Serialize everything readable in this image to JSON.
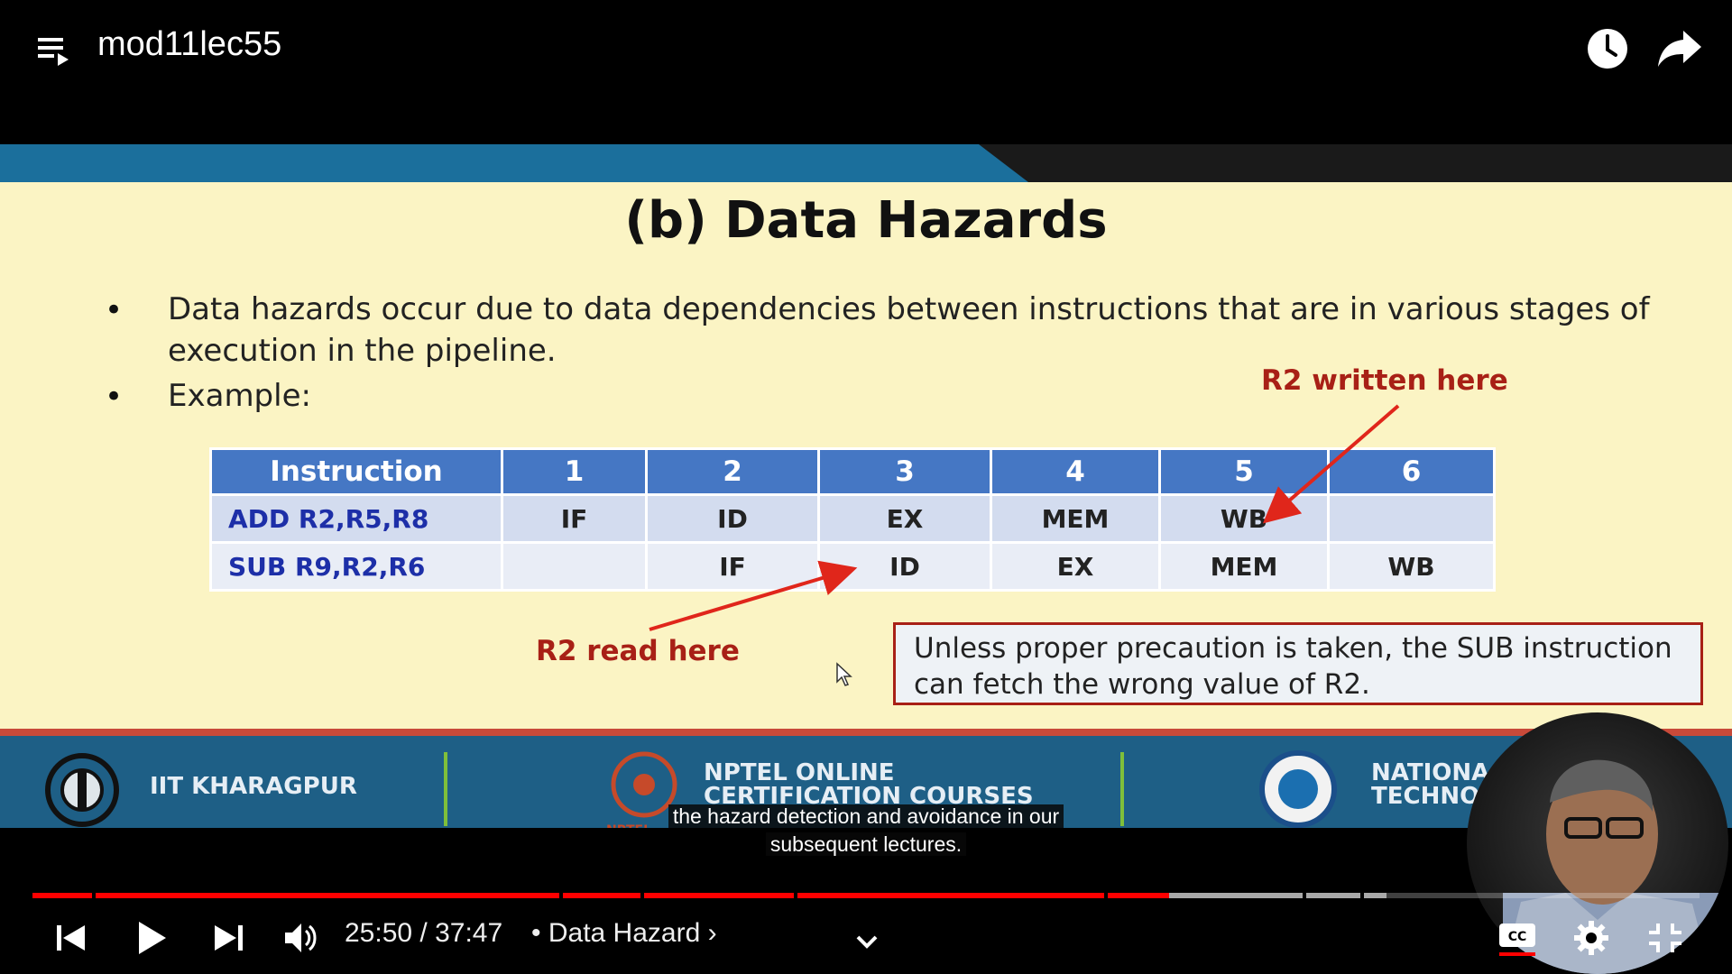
{
  "header": {
    "title": "mod11lec55",
    "playlist_icon": "playlist-icon",
    "watch_later_icon": "clock-icon",
    "share_icon": "share-arrow-icon"
  },
  "slide": {
    "heading": "(b) Data Hazards",
    "bullets": [
      "Data hazards occur due to data dependencies between instructions that are in various stages of execution in the pipeline.",
      "Example:"
    ],
    "table": {
      "headers": [
        "Instruction",
        "1",
        "2",
        "3",
        "4",
        "5",
        "6"
      ],
      "rows": [
        [
          "ADD  R2,R5,R8",
          "IF",
          "ID",
          "EX",
          "MEM",
          "WB",
          ""
        ],
        [
          "SUB  R9,R2,R6",
          "",
          "IF",
          "ID",
          "EX",
          "MEM",
          "WB"
        ]
      ]
    },
    "annotations": {
      "write": "R2 written here",
      "read": "R2 read here"
    },
    "note": "Unless proper precaution is taken, the SUB instruction can fetch the wrong value of R2.",
    "footer": {
      "left": "IIT KHARAGPUR",
      "center_line1": "NPTEL ONLINE",
      "center_line2": "CERTIFICATION COURSES",
      "center_small": "NPTEL",
      "right_line1": "NATIONA",
      "right_line2": "TECHNO"
    },
    "colors": {
      "band": "#1b6f9c",
      "slide_bg": "#fbf4c4",
      "table_header": "#4577c4",
      "accent_red": "#a82016"
    }
  },
  "captions": {
    "line1": "the hazard detection and avoidance in our",
    "line2": "subsequent lectures."
  },
  "player": {
    "time": "25:50 / 37:47",
    "chapter": "• Data Hazard ›",
    "played_fraction": 0.682,
    "buffered_fraction": 0.812,
    "icons": [
      "previous-icon",
      "play-icon",
      "next-icon",
      "volume-icon",
      "chevron-down-icon",
      "captions-icon",
      "settings-gear-icon",
      "exit-fullscreen-icon"
    ]
  }
}
